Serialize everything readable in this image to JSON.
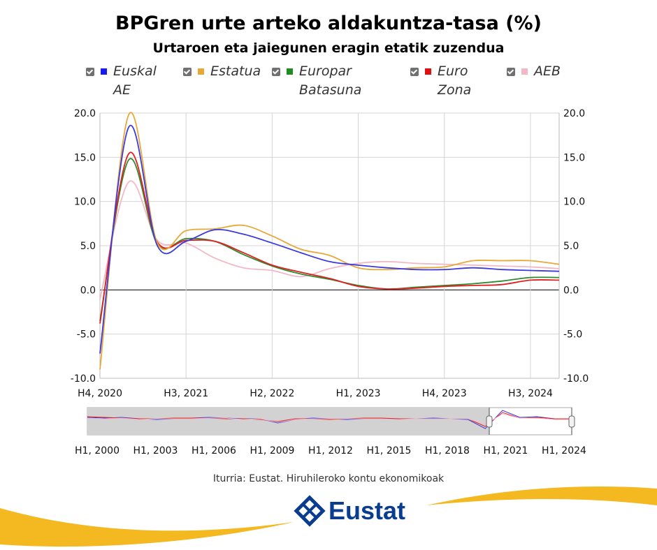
{
  "chart_data": {
    "type": "line",
    "title": "BPGren urte arteko aldakuntza-tasa (%)",
    "subtitle": "Urtaroen eta jaiegunen eragin etatik zuzendua",
    "x_tick_labels": [
      "H4, 2020",
      "H3, 2021",
      "H2, 2022",
      "H1, 2023",
      "H4, 2023",
      "H3, 2024"
    ],
    "y_ticks": [
      "20.0",
      "15.0",
      "10.0",
      "5.0",
      "0.0",
      "-5.0",
      "-10.0"
    ],
    "ylim": [
      -10,
      20
    ],
    "grid": true,
    "legend_position": "top",
    "x": [
      "H4, 2020",
      "H1, 2021",
      "H2, 2021",
      "H3, 2021",
      "H4, 2021",
      "H1, 2022",
      "H2, 2022",
      "H3, 2022",
      "H4, 2022",
      "H1, 2023",
      "H2, 2023",
      "H3, 2023",
      "H4, 2023",
      "H1, 2024",
      "H2, 2024",
      "H3, 2024",
      "H4, 2024"
    ],
    "series": [
      {
        "name": "Euskal AE",
        "color": "#3a3adf",
        "values": [
          -7.2,
          18.4,
          5.0,
          5.5,
          6.8,
          6.3,
          5.3,
          4.2,
          3.2,
          2.8,
          2.5,
          2.3,
          2.3,
          2.5,
          2.3,
          2.2,
          2.1
        ]
      },
      {
        "name": "Estatua",
        "color": "#e8a838",
        "values": [
          -9.0,
          19.8,
          5.3,
          6.7,
          6.9,
          7.3,
          6.1,
          4.6,
          3.9,
          2.5,
          2.3,
          2.5,
          2.6,
          3.3,
          3.3,
          3.3,
          2.9
        ]
      },
      {
        "name": "Europar Batasuna",
        "color": "#2e8b2e",
        "values": [
          -3.5,
          14.7,
          5.2,
          5.8,
          5.5,
          4.0,
          2.7,
          1.8,
          1.2,
          0.5,
          0.1,
          0.3,
          0.5,
          0.7,
          1.0,
          1.4,
          1.4
        ]
      },
      {
        "name": "Euro Zona",
        "color": "#e02020",
        "values": [
          -3.8,
          15.4,
          5.4,
          5.6,
          5.5,
          4.2,
          2.8,
          2.0,
          1.3,
          0.4,
          0.1,
          0.2,
          0.4,
          0.5,
          0.6,
          1.1,
          1.1
        ]
      },
      {
        "name": "AEB",
        "color": "#f2b8c6",
        "values": [
          -1.1,
          12.2,
          5.6,
          5.3,
          3.6,
          2.5,
          2.2,
          1.5,
          2.4,
          3.0,
          3.2,
          3.0,
          2.9,
          2.8,
          2.7,
          2.6,
          2.4
        ]
      }
    ],
    "navigator": {
      "x_tick_labels": [
        "H1, 2000",
        "H1, 2003",
        "H1, 2006",
        "H1, 2009",
        "H1, 2012",
        "H1, 2015",
        "H1, 2018",
        "H1, 2021",
        "H1, 2024"
      ]
    }
  },
  "source": "Iturria: Eustat. Hiruhileroko kontu ekonomikoak",
  "logo": {
    "text": "Eustat"
  }
}
